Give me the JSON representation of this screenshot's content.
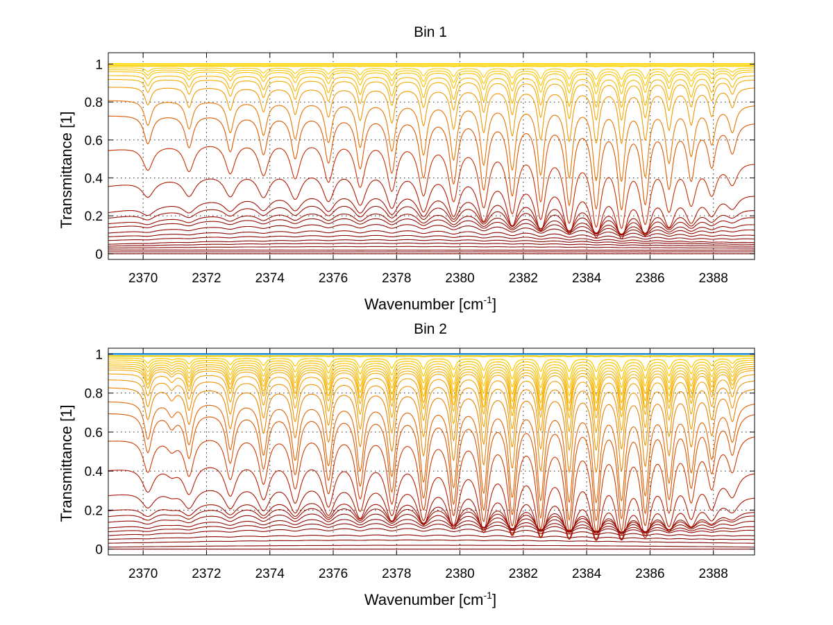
{
  "chart_data": [
    {
      "type": "line",
      "title": "Bin 1",
      "xlabel_base": "Wavenumber [cm",
      "xlabel_sup": "-1",
      "xlabel_close": "]",
      "ylabel": "Transmittance [1]",
      "xlim": [
        2368.9,
        2389.3
      ],
      "ylim": [
        -0.03,
        1.06
      ],
      "xticks": [
        "2370",
        "2372",
        "2374",
        "2376",
        "2378",
        "2380",
        "2382",
        "2384",
        "2386",
        "2388"
      ],
      "yticks": [
        "0",
        "0.2",
        "0.4",
        "0.6",
        "0.8",
        "1"
      ],
      "grid": true,
      "series_count": 28,
      "baseline_start": [
        1.0,
        1.0,
        1.0,
        0.99,
        0.99,
        0.98,
        0.97,
        0.96,
        0.94,
        0.92,
        0.88,
        0.81,
        0.73,
        0.55,
        0.36,
        0.22,
        0.19,
        0.16,
        0.14,
        0.11,
        0.09,
        0.07,
        0.05,
        0.04,
        0.03,
        0.02,
        0.01,
        0.0
      ],
      "baseline_end": [
        1.0,
        1.0,
        1.0,
        0.99,
        0.99,
        0.98,
        0.97,
        0.96,
        0.94,
        0.92,
        0.88,
        0.79,
        0.7,
        0.49,
        0.32,
        0.24,
        0.2,
        0.16,
        0.13,
        0.1,
        0.08,
        0.06,
        0.05,
        0.04,
        0.03,
        0.02,
        0.01,
        0.0
      ],
      "baseline_hump": [
        0.0,
        0.0,
        0.0,
        0.0,
        0.0,
        0.0,
        0.0,
        0.0,
        0.0,
        0.0,
        0.0,
        0.01,
        0.03,
        0.11,
        0.14,
        0.13,
        0.11,
        0.09,
        0.08,
        0.07,
        0.05,
        0.04,
        0.03,
        0.02,
        0.01,
        0.0,
        0.0,
        0.0
      ],
      "line_centers": [
        2370.15,
        2371.45,
        2372.75,
        2373.8,
        2374.8,
        2375.85,
        2376.85,
        2377.85,
        2378.85,
        2379.8,
        2380.75,
        2381.65,
        2382.55,
        2383.45,
        2384.3,
        2385.1,
        2385.85,
        2386.6,
        2387.3,
        2387.95,
        2388.6
      ],
      "line_strength": [
        0.22,
        0.25,
        0.28,
        0.3,
        0.33,
        0.36,
        0.4,
        0.43,
        0.46,
        0.5,
        0.54,
        0.58,
        0.62,
        0.64,
        0.66,
        0.66,
        0.62,
        0.5,
        0.44,
        0.34,
        0.24
      ]
    },
    {
      "type": "line",
      "title": "Bin 2",
      "xlabel_base": "Wavenumber [cm",
      "xlabel_sup": "-1",
      "xlabel_close": "]",
      "ylabel": "Transmittance [1]",
      "xlim": [
        2368.9,
        2389.3
      ],
      "ylim": [
        -0.03,
        1.03
      ],
      "xticks": [
        "2370",
        "2372",
        "2374",
        "2376",
        "2378",
        "2380",
        "2382",
        "2384",
        "2386",
        "2388"
      ],
      "yticks": [
        "0",
        "0.2",
        "0.4",
        "0.6",
        "0.8",
        "1"
      ],
      "grid": true,
      "series_count": 32,
      "baseline_start": [
        1.0,
        1.0,
        0.99,
        0.99,
        0.99,
        0.98,
        0.98,
        0.97,
        0.97,
        0.96,
        0.95,
        0.94,
        0.93,
        0.92,
        0.9,
        0.87,
        0.83,
        0.76,
        0.7,
        0.56,
        0.41,
        0.28,
        0.2,
        0.17,
        0.14,
        0.11,
        0.09,
        0.07,
        0.05,
        0.03,
        0.01,
        0.0
      ],
      "baseline_end": [
        1.0,
        1.0,
        0.99,
        0.99,
        0.99,
        0.98,
        0.98,
        0.97,
        0.97,
        0.96,
        0.95,
        0.94,
        0.93,
        0.92,
        0.9,
        0.87,
        0.83,
        0.76,
        0.71,
        0.6,
        0.41,
        0.28,
        0.2,
        0.18,
        0.15,
        0.12,
        0.1,
        0.07,
        0.05,
        0.03,
        0.01,
        0.0
      ],
      "baseline_hump": [
        0.0,
        0.0,
        0.0,
        0.0,
        0.0,
        0.0,
        0.0,
        0.0,
        0.0,
        0.0,
        0.0,
        0.0,
        0.0,
        0.0,
        0.0,
        0.0,
        0.0,
        0.01,
        0.02,
        0.06,
        0.1,
        0.11,
        0.1,
        0.09,
        0.08,
        0.07,
        0.06,
        0.05,
        0.03,
        0.02,
        0.01,
        0.0
      ],
      "line_centers": [
        2370.15,
        2370.9,
        2371.45,
        2372.75,
        2373.8,
        2374.8,
        2375.85,
        2376.85,
        2377.85,
        2378.85,
        2379.8,
        2380.75,
        2381.65,
        2382.55,
        2383.45,
        2384.3,
        2385.1,
        2385.85,
        2386.6,
        2387.3,
        2387.95,
        2388.6
      ],
      "line_strength": [
        0.3,
        0.1,
        0.34,
        0.38,
        0.42,
        0.46,
        0.5,
        0.54,
        0.58,
        0.62,
        0.66,
        0.7,
        0.73,
        0.75,
        0.76,
        0.76,
        0.74,
        0.7,
        0.6,
        0.52,
        0.42,
        0.3
      ]
    }
  ]
}
